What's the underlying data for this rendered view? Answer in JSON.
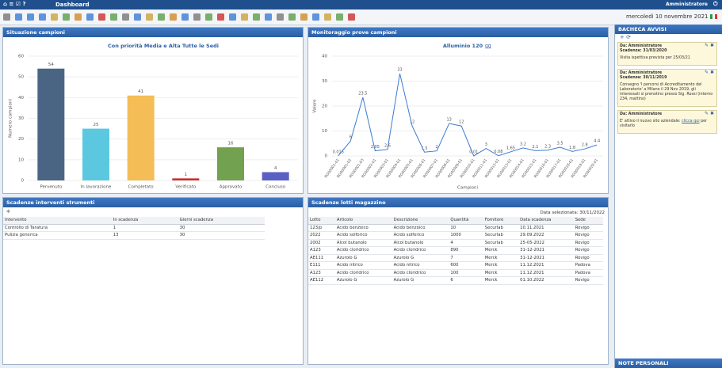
{
  "header": {
    "title": "Dashboard",
    "user": "Amministratore",
    "date": "mercoledì 10 novembre 2021"
  },
  "panels": [
    "Situazione campioni",
    "Monitoraggio prove campioni",
    "Scadenze interventi strumenti",
    "Scadenze lotti magazzino"
  ],
  "chart_data": [
    {
      "type": "bar",
      "title": "Con priorità Media e Alta Tutte le Sedi",
      "y_label": "Numero campioni",
      "categories": [
        "Pervenuto",
        "In lavorazione",
        "Completato",
        "Verificato",
        "Approvato",
        "Concluso"
      ],
      "values": [
        54,
        25,
        41,
        1,
        16,
        4
      ],
      "colors": [
        "#4a6584",
        "#5bc8e0",
        "#f5bd55",
        "#c9302c",
        "#72a150",
        "#5a5fc4"
      ],
      "ylim": [
        0,
        60
      ],
      "yticks": [
        0,
        10,
        20,
        30,
        40,
        50,
        60
      ],
      "grid": true
    },
    {
      "type": "line",
      "title": "Alluminio 120",
      "title_link": "gg",
      "y_label": "Valore",
      "x_label": "Campioni",
      "color": "#3a7bd5",
      "categories": [
        "RG00001-01",
        "RG00001-02",
        "RG00001-03",
        "RG00002-01",
        "RG00003-01",
        "RG00004-01",
        "RG00005-01",
        "RG00006-01",
        "RG00007-01",
        "RG00008-01",
        "RG00009-01",
        "RG00010-01",
        "RG00011-01",
        "RG00012-01",
        "RG00013-01",
        "RG00014-01",
        "RG00015-01",
        "RG00016-01",
        "RG00017-01",
        "RG00018-01",
        "RG00019-01",
        "RG00020-01"
      ],
      "values": [
        0.015,
        6,
        23.5,
        2.05,
        2.6,
        33,
        12,
        1.5,
        2,
        13,
        12,
        0.01,
        3,
        0.08,
        1.65,
        3.2,
        2.1,
        2.3,
        3.5,
        1.8,
        2.8,
        4.4
      ],
      "ylim": [
        0,
        40
      ],
      "yticks": [
        0,
        10,
        20,
        30,
        40
      ],
      "grid": true
    }
  ],
  "interventi": {
    "columns": [
      "Intervento",
      "In scadenza",
      "Giorni scadenza"
    ],
    "rows": [
      [
        "Controllo di Taratura",
        "1",
        "30"
      ],
      [
        "Pulizia generica",
        "13",
        "30"
      ]
    ]
  },
  "lotti": {
    "note": "Data selezionata: 30/11/2022",
    "columns": [
      "Lotto",
      "Articolo",
      "Descrizione",
      "Quantità",
      "Fornitore",
      "Data scadenza",
      "Sede"
    ],
    "rows": [
      [
        "123/p",
        "Acido benzoico",
        "Acido benzoico",
        "10",
        "Securlab",
        "10.11.2021",
        "Rovigo"
      ],
      [
        "2022",
        "Acido solforico",
        "Acido solforico",
        "1000",
        "Securlab",
        "29.09.2022",
        "Rovigo"
      ],
      [
        "2002",
        "Alcol butanolo",
        "Alcol butanolo",
        "4",
        "Securlab",
        "25-05-2022",
        "Rovigo"
      ],
      [
        "A123",
        "Acido cloridrico",
        "Acido cloridrico",
        "890",
        "Merck",
        "31-12-2021",
        "Rovigo"
      ],
      [
        "AE111",
        "Azurolo G",
        "Azurolo G",
        "7",
        "Merck",
        "31-12-2021",
        "Rovigo"
      ],
      [
        "E111",
        "Acido nitrico",
        "Acido nitrico",
        "600",
        "Merck",
        "11.12.2021",
        "Padova"
      ],
      [
        "A123",
        "Acido cloridrico",
        "Acido cloridrico",
        "100",
        "Merck",
        "11.12.2021",
        "Padova"
      ],
      [
        "AE112",
        "Azurolo G",
        "Azurolo G",
        "6",
        "Merck",
        "01.10.2022",
        "Rovigo"
      ]
    ]
  },
  "bacheca": {
    "title": "BACHECA AVVISI",
    "notices": [
      {
        "from": "Da: Amministratore",
        "deadline": "Scadenza: 31/03/2020",
        "text": "Visita ispettiva prevista per 25/03/21"
      },
      {
        "from": "Da: Amministratore",
        "deadline": "Scadenza: 30/11/2019",
        "text": "Convegno 'I percorsi di Accreditamento del Laboratorio' a Milano il 29 Nov 2019, gli interessati si prenotino presso Sig. Rossi (interno 234, mattino)"
      },
      {
        "from": "Da: Amministratore",
        "text": "E' attivo il nuovo sito aziendale:",
        "link": "clicca qui",
        "after": "per visitarlo"
      }
    ]
  },
  "note_personali": "NOTE PERSONALI"
}
